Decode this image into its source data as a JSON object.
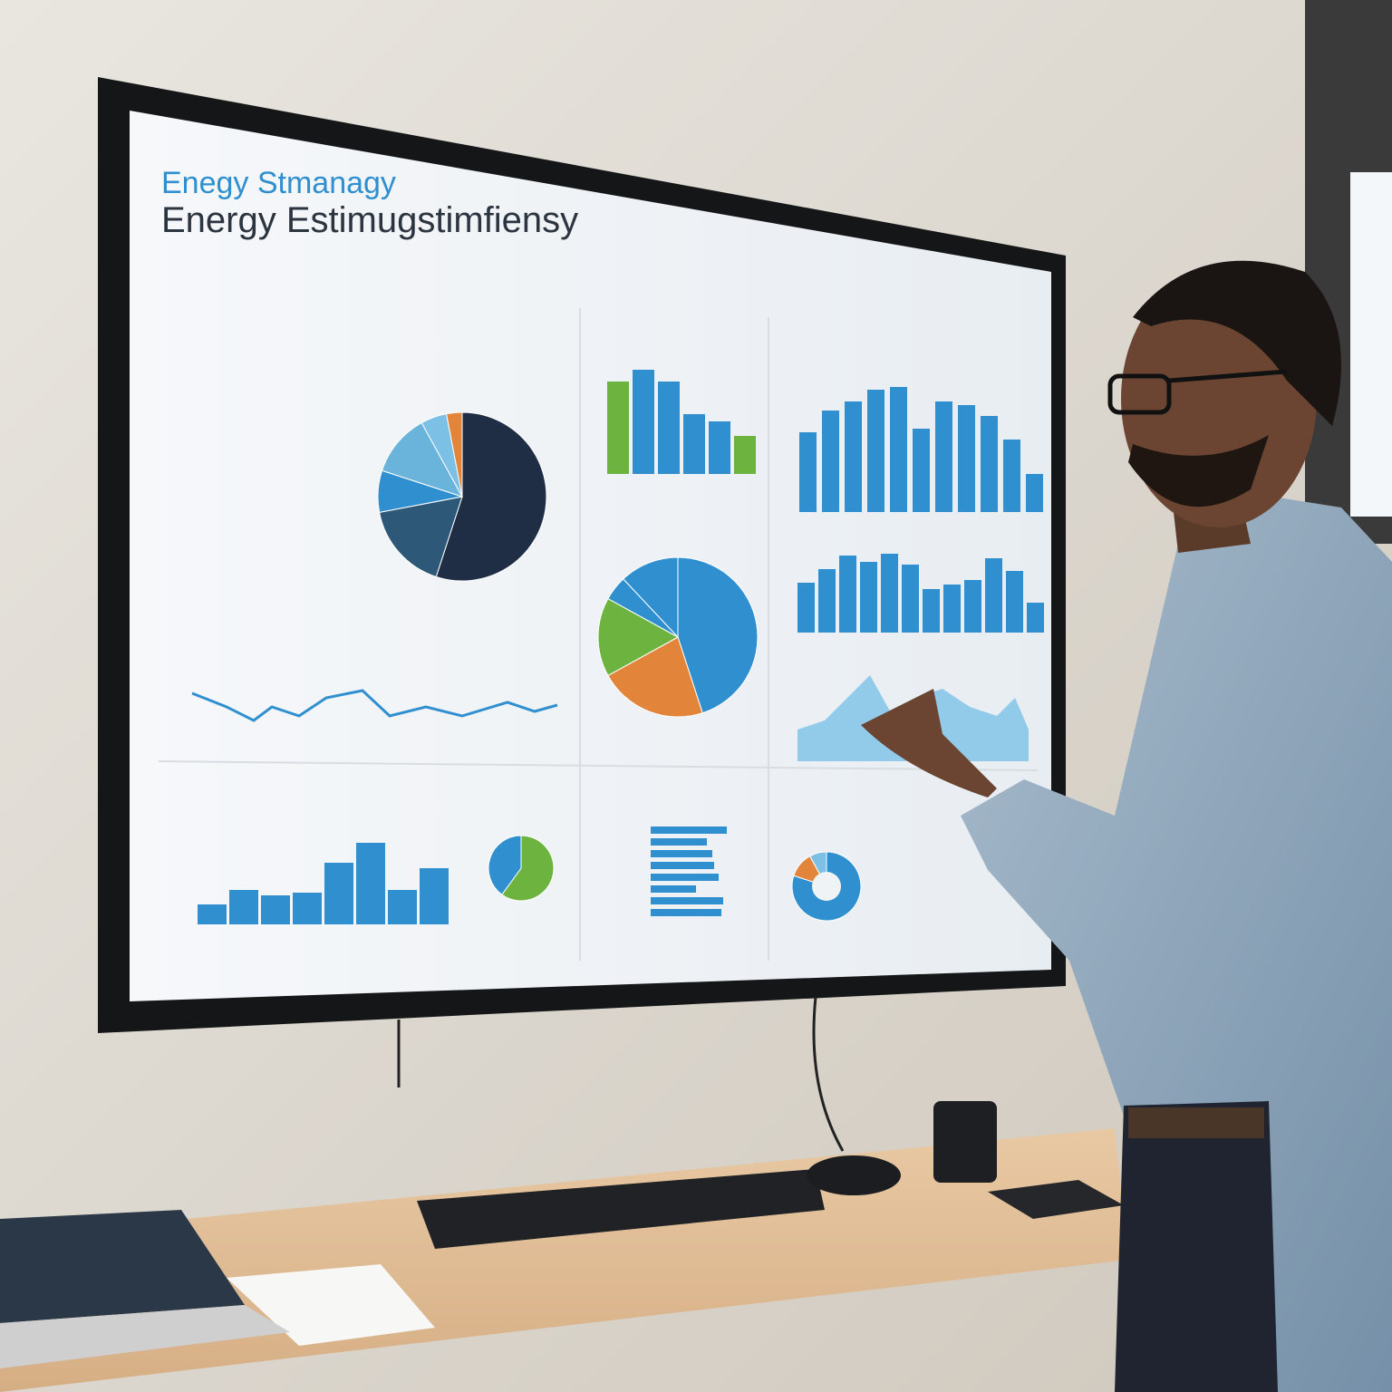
{
  "screen": {
    "title_top": "Enegy Stmanagy",
    "title_main": "Energy Estimugstimfiensy"
  }
}
